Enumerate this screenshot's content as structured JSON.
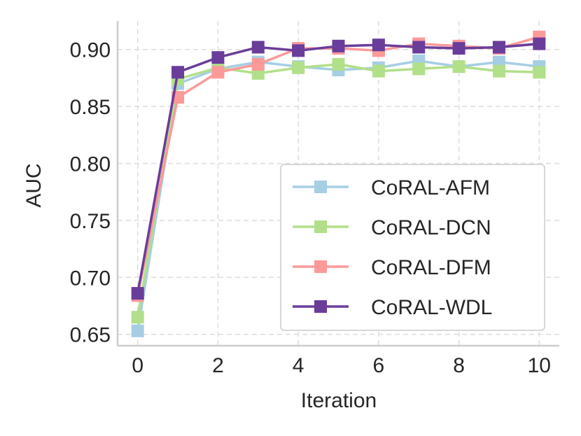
{
  "chart_data": {
    "type": "line",
    "title": "",
    "xlabel": "Iteration",
    "ylabel": "AUC",
    "x": [
      0,
      1,
      2,
      3,
      4,
      5,
      6,
      7,
      8,
      9,
      10
    ],
    "xlim": [
      -0.5,
      10.5
    ],
    "ylim": [
      0.64,
      0.925
    ],
    "xticks": [
      0,
      2,
      4,
      6,
      8,
      10
    ],
    "yticks": [
      0.65,
      0.7,
      0.75,
      0.8,
      0.85,
      0.9
    ],
    "xtick_labels": [
      "0",
      "2",
      "4",
      "6",
      "8",
      "10"
    ],
    "ytick_labels": [
      "0.65",
      "0.70",
      "0.75",
      "0.80",
      "0.85",
      "0.90"
    ],
    "grid": true,
    "legend_position": "lower-right",
    "series": [
      {
        "name": "CoRAL-AFM",
        "color": "#a6cee3",
        "marker": "square",
        "values": [
          0.653,
          0.87,
          0.883,
          0.889,
          0.885,
          0.882,
          0.884,
          0.89,
          0.885,
          0.889,
          0.885
        ]
      },
      {
        "name": "CoRAL-DCN",
        "color": "#b2df8a",
        "marker": "square",
        "values": [
          0.665,
          0.874,
          0.884,
          0.879,
          0.884,
          0.887,
          0.881,
          0.883,
          0.885,
          0.881,
          0.88
        ]
      },
      {
        "name": "CoRAL-DFM",
        "color": "#fb9a99",
        "marker": "square",
        "values": [
          0.684,
          0.858,
          0.88,
          0.887,
          0.901,
          0.901,
          0.899,
          0.905,
          0.903,
          0.901,
          0.911
        ]
      },
      {
        "name": "CoRAL-WDL",
        "color": "#6a3d9a",
        "marker": "square",
        "values": [
          0.686,
          0.88,
          0.893,
          0.902,
          0.899,
          0.903,
          0.904,
          0.902,
          0.901,
          0.902,
          0.905
        ]
      }
    ]
  }
}
